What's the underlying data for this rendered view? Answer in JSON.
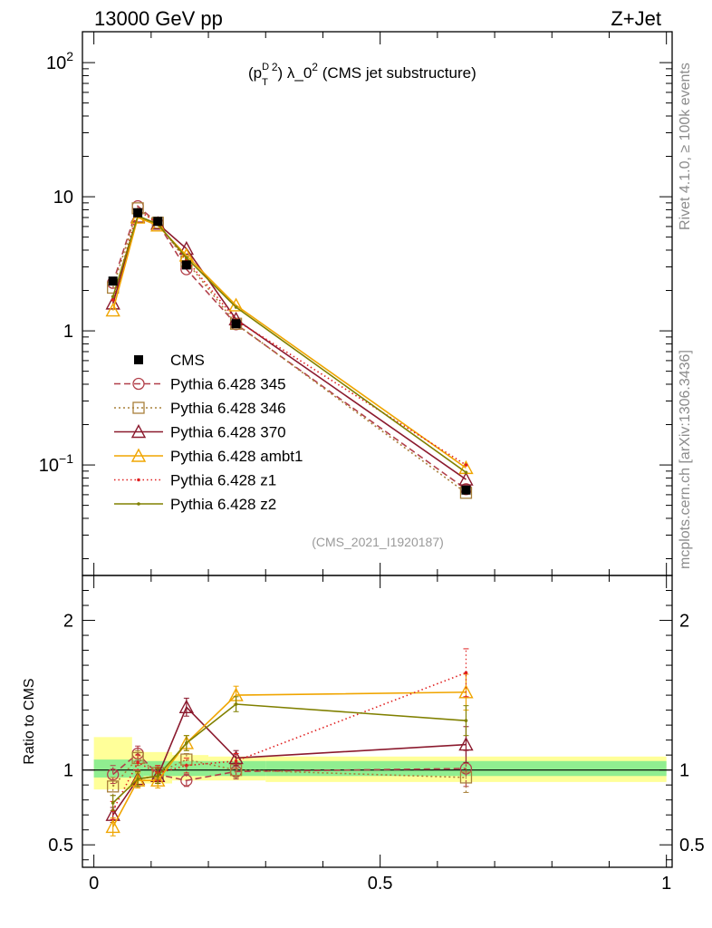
{
  "header": {
    "left": "13000 GeV pp",
    "right": "Z+Jet"
  },
  "side_labels": {
    "rivet": "Rivet 4.1.0, ≥ 100k events",
    "mcplots": "mcplots.cern.ch [arXiv:1306.3436]"
  },
  "plot_title": {
    "p": "(p",
    "sup_d": "D",
    "sub_t": "T",
    "sup_2": "2",
    "mid": ") λ_0",
    "sup_3": "2",
    "rest": " (CMS jet substructure)"
  },
  "analysis_id": "(CMS_2021_I1920187)",
  "ratio_ylabel": "Ratio to CMS",
  "chart_data": {
    "type": "line",
    "x": [
      0.0333,
      0.0767,
      0.1117,
      0.1617,
      0.2483,
      0.65
    ],
    "xlim": [
      -0.02,
      1.01
    ],
    "main": {
      "yscale": "log",
      "ylim": [
        0.015,
        170
      ],
      "yticks": [
        {
          "value": 0.1,
          "base": "10",
          "exp": "−1"
        },
        {
          "value": 1,
          "base": "1",
          "exp": ""
        },
        {
          "value": 10,
          "base": "10",
          "exp": ""
        },
        {
          "value": 100,
          "base": "10",
          "exp": "2"
        }
      ]
    },
    "ratio": {
      "ylim": [
        0.35,
        2.3
      ],
      "yticks": [
        {
          "value": 0.5,
          "label": "0.5"
        },
        {
          "value": 1,
          "label": "1"
        },
        {
          "value": 2,
          "label": "2"
        }
      ]
    },
    "xticks": [
      {
        "value": 0,
        "label": "0"
      },
      {
        "value": 0.5,
        "label": "0.5"
      },
      {
        "value": 1,
        "label": "1"
      }
    ],
    "data": {
      "name": "CMS",
      "color": "#000000",
      "values": [
        2.35,
        7.6,
        6.55,
        3.1,
        1.13,
        0.065
      ],
      "bands": {
        "stat_color": "#90ee90",
        "total_color": "#ffff99",
        "bins": [
          {
            "x0": 0.0,
            "x1": 0.0667,
            "stat": [
              0.95,
              1.07
            ],
            "total": [
              0.87,
              1.22
            ]
          },
          {
            "x0": 0.0667,
            "x1": 0.0867,
            "stat": [
              0.95,
              1.07
            ],
            "total": [
              0.9,
              1.13
            ]
          },
          {
            "x0": 0.0867,
            "x1": 0.1367,
            "stat": [
              0.96,
              1.06
            ],
            "total": [
              0.91,
              1.12
            ]
          },
          {
            "x0": 0.1367,
            "x1": 0.2,
            "stat": [
              0.96,
              1.06
            ],
            "total": [
              0.93,
              1.1
            ]
          },
          {
            "x0": 0.2,
            "x1": 0.3,
            "stat": [
              0.96,
              1.06
            ],
            "total": [
              0.93,
              1.09
            ]
          },
          {
            "x0": 0.3,
            "x1": 1.0,
            "stat": [
              0.96,
              1.06
            ],
            "total": [
              0.92,
              1.09
            ]
          }
        ]
      }
    },
    "series": [
      {
        "name": "Pythia 6.428 345",
        "color": "#b2404a",
        "dash": "7,4",
        "marker": "circle",
        "values": [
          2.28,
          8.5,
          6.35,
          2.88,
          1.12,
          0.066
        ],
        "ratio": [
          0.97,
          1.11,
          0.97,
          0.93,
          0.99,
          1.01
        ],
        "ratio_err": [
          0.06,
          0.05,
          0.05,
          0.04,
          0.05,
          0.12
        ]
      },
      {
        "name": "Pythia 6.428 346",
        "color": "#a9803a",
        "dash": "2,3",
        "marker": "square",
        "values": [
          2.1,
          8.2,
          6.4,
          3.3,
          1.13,
          0.062
        ],
        "ratio": [
          0.89,
          1.08,
          0.98,
          1.07,
          1.0,
          0.95
        ],
        "ratio_err": [
          0.06,
          0.05,
          0.05,
          0.04,
          0.05,
          0.1
        ]
      },
      {
        "name": "Pythia 6.428 370",
        "color": "#8b1a2e",
        "dash": "",
        "marker": "triangle",
        "values": [
          1.6,
          7.1,
          6.3,
          4.1,
          1.22,
          0.078
        ],
        "ratio": [
          0.7,
          0.94,
          0.96,
          1.42,
          1.08,
          1.17
        ],
        "ratio_err": [
          0.05,
          0.05,
          0.05,
          0.06,
          0.05,
          0.12
        ]
      },
      {
        "name": "Pythia 6.428 ambt1",
        "color": "#f0a500",
        "dash": "",
        "marker": "triangle",
        "values": [
          1.42,
          7.0,
          6.1,
          3.65,
          1.55,
          0.095
        ],
        "ratio": [
          0.62,
          0.93,
          0.93,
          1.18,
          1.5,
          1.52
        ],
        "ratio_err": [
          0.06,
          0.05,
          0.05,
          0.05,
          0.06,
          0.12
        ]
      },
      {
        "name": "Pythia 6.428 z1",
        "color": "#e02020",
        "dash": "1.5,3",
        "marker": "dot",
        "values": [
          1.7,
          8.0,
          6.3,
          3.4,
          1.2,
          0.1
        ],
        "ratio": [
          0.73,
          1.05,
          0.98,
          1.03,
          1.06,
          1.65
        ],
        "ratio_err": [
          0.06,
          0.05,
          0.05,
          0.05,
          0.05,
          0.16
        ]
      },
      {
        "name": "Pythia 6.428 z2",
        "color": "#808000",
        "dash": "",
        "marker": "dot",
        "values": [
          1.8,
          7.2,
          6.25,
          3.5,
          1.5,
          0.088
        ],
        "ratio": [
          0.78,
          0.94,
          0.96,
          1.18,
          1.44,
          1.33
        ],
        "ratio_err": [
          0.05,
          0.05,
          0.05,
          0.05,
          0.05,
          0.1
        ]
      }
    ]
  }
}
